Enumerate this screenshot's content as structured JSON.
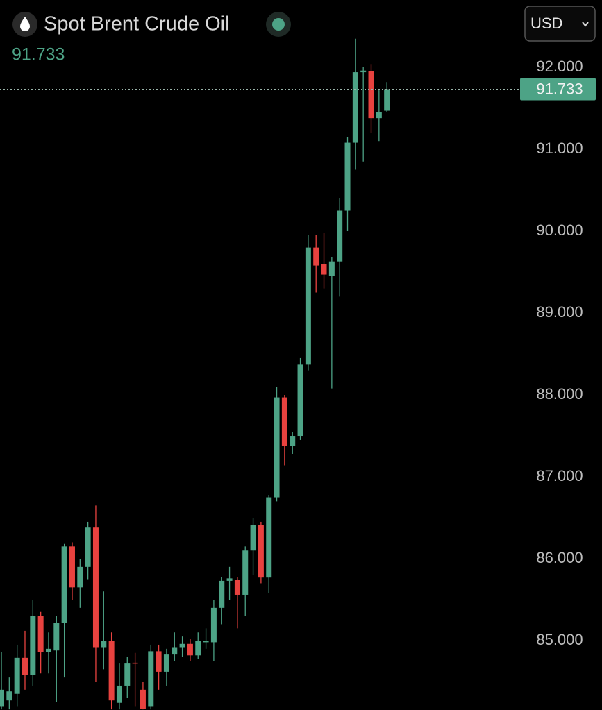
{
  "chart_data": {
    "type": "candlestick",
    "title": "Spot Brent Crude Oil",
    "currency": "USD",
    "last_price": 91.733,
    "up_color": "#4da386",
    "down_color": "#e8423f",
    "open": [
      84.2,
      84.27,
      84.35,
      84.79,
      84.58,
      85.3,
      84.86,
      84.88,
      85.22,
      86.15,
      85.65,
      85.9,
      86.38,
      84.92,
      85.0,
      84.24,
      84.45,
      84.73,
      84.4,
      84.2,
      84.87,
      84.62,
      84.83,
      84.92,
      84.96,
      84.82,
      84.98,
      84.98,
      85.4,
      85.73,
      85.74,
      85.56,
      86.1,
      86.41,
      85.77,
      86.75,
      87.97,
      87.38,
      87.5,
      88.37,
      89.8,
      89.6,
      89.45,
      89.63,
      90.25,
      91.08,
      91.94,
      91.95,
      91.38,
      91.47
    ],
    "high": [
      84.86,
      84.55,
      84.95,
      85.12,
      85.5,
      85.35,
      85.1,
      85.3,
      86.18,
      86.2,
      86.0,
      86.45,
      86.65,
      85.6,
      85.1,
      84.72,
      84.8,
      84.85,
      84.5,
      84.95,
      84.95,
      84.9,
      85.1,
      85.05,
      85.02,
      85.1,
      85.15,
      85.5,
      85.78,
      85.9,
      85.78,
      86.15,
      86.5,
      86.45,
      86.78,
      88.1,
      88.0,
      87.55,
      88.45,
      89.95,
      89.95,
      89.98,
      89.68,
      90.4,
      91.15,
      92.35,
      92.0,
      92.04,
      91.72,
      91.82
    ],
    "low": [
      84.16,
      84.16,
      84.2,
      84.4,
      84.45,
      84.6,
      84.6,
      84.25,
      84.55,
      85.5,
      85.4,
      85.75,
      84.5,
      84.65,
      84.16,
      84.16,
      84.3,
      84.2,
      84.16,
      84.16,
      84.4,
      84.45,
      84.75,
      84.8,
      84.75,
      84.78,
      84.9,
      84.75,
      85.2,
      85.5,
      85.15,
      85.3,
      85.8,
      85.7,
      85.58,
      86.7,
      87.14,
      87.28,
      87.45,
      88.3,
      89.25,
      89.3,
      88.08,
      89.2,
      90.0,
      90.75,
      90.85,
      91.2,
      91.1,
      91.45
    ],
    "close": [
      84.4,
      84.38,
      84.79,
      84.58,
      85.3,
      84.86,
      84.9,
      85.22,
      86.15,
      85.65,
      85.9,
      86.38,
      84.92,
      85.0,
      84.27,
      84.45,
      84.72,
      84.72,
      84.17,
      84.87,
      84.62,
      84.83,
      84.92,
      84.96,
      84.82,
      85.0,
      85.0,
      85.4,
      85.73,
      85.76,
      85.56,
      86.1,
      86.41,
      85.77,
      86.75,
      87.97,
      87.38,
      87.5,
      88.37,
      89.8,
      89.58,
      89.47,
      89.63,
      90.25,
      91.08,
      91.94,
      91.96,
      91.38,
      91.45,
      91.733
    ],
    "ylim": [
      84.153,
      92.822
    ],
    "yticks": [
      {
        "value": 85,
        "label": "85.000"
      },
      {
        "value": 86,
        "label": "86.000"
      },
      {
        "value": 87,
        "label": "87.000"
      },
      {
        "value": 88,
        "label": "88.000"
      },
      {
        "value": 89,
        "label": "89.000"
      },
      {
        "value": 90,
        "label": "90.000"
      },
      {
        "value": 91,
        "label": "91.000"
      },
      {
        "value": 92,
        "label": "92.000"
      }
    ]
  }
}
